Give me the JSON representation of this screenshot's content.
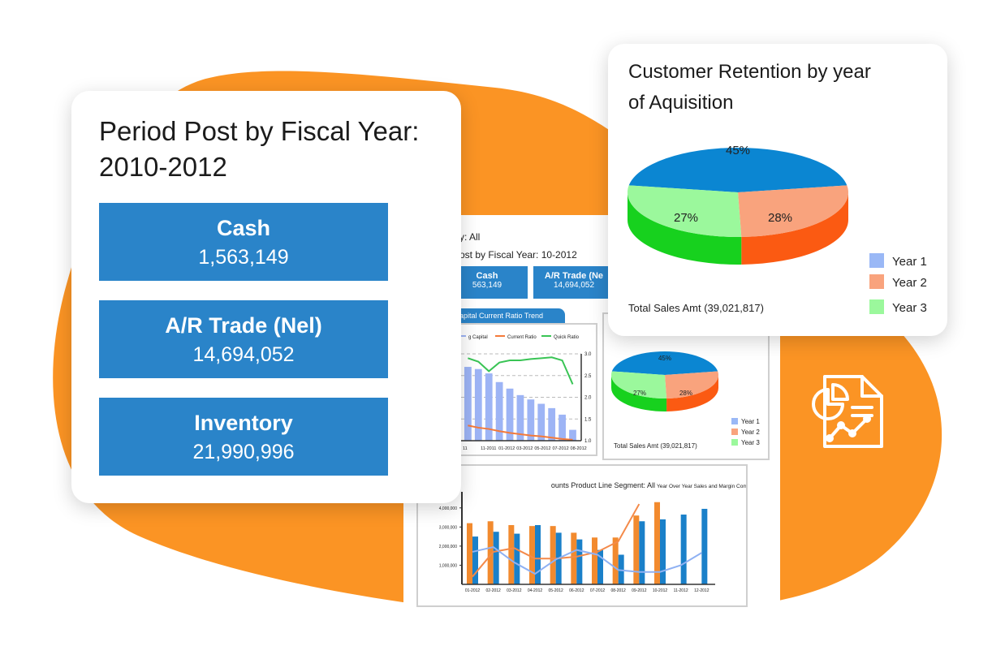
{
  "colors": {
    "orange": "#fb9424",
    "blue": "#2a84c9",
    "bar_blue": "#9db4f5",
    "green": "#39c455",
    "orange_line": "#f47a3a",
    "icon_white": "#ffffff"
  },
  "icons": {
    "report": "report-icon"
  },
  "period_card": {
    "title": "Period Post by Fiscal Year: 2010-2012",
    "kpis": [
      {
        "label": "Cash",
        "value": "1,563,149"
      },
      {
        "label": "A/R Trade (Nel)",
        "value": "14,694,052"
      },
      {
        "label": "Inventory",
        "value": "21,990,996"
      }
    ]
  },
  "dashboard": {
    "filter": "y: All",
    "subtitle": "ost by Fiscal Year: 10-2012",
    "kpis": [
      {
        "label": "Cash",
        "value": "563,149"
      },
      {
        "label": "A/R Trade (Ne",
        "value": "14,694,052"
      }
    ],
    "trend_tab": "apital Current Ratio Trend",
    "segment_title": "ounts Product Line Segment: All",
    "yoy_title": "Year Over Year Sales and Margin Comparison"
  },
  "retention_card": {
    "title": "Customer Retention by year of Aquisition",
    "total": "Total Sales Amt (39,021,817)"
  },
  "chart_data": [
    {
      "type": "pie",
      "title": "Customer Retention by year of Aquisition",
      "labels": [
        "Year 1",
        "Year 2",
        "Year 3"
      ],
      "values": [
        45,
        27,
        28
      ],
      "data_labels": [
        "45%",
        "27%",
        "28%"
      ],
      "colors": [
        "#0b86d2",
        "#f9a37d",
        "#9bf89c"
      ],
      "side_colors": [
        "#0a5ea0",
        "#fb5a12",
        "#17d11e"
      ],
      "legend_colors": [
        "#9ab8f6",
        "#f9a37d",
        "#9bf89c"
      ],
      "legend_position": "bottom-right",
      "annotation": "Total Sales Amt (39,021,817)"
    },
    {
      "type": "pie",
      "labels": [
        "Year 1",
        "Year 2",
        "Year 3"
      ],
      "values": [
        45,
        27,
        28
      ],
      "data_labels": [
        "45%",
        "27%",
        "28%"
      ],
      "colors": [
        "#0b86d2",
        "#f9a37d",
        "#9bf89c"
      ],
      "side_colors": [
        "#0a5ea0",
        "#fb5a12",
        "#17d11e"
      ],
      "legend_colors": [
        "#9ab8f6",
        "#f9a37d",
        "#9bf89c"
      ],
      "legend_position": "bottom-right",
      "annotation": "Total Sales Amt (39,021,817)"
    },
    {
      "type": "bar",
      "series_legend": [
        "g Capital",
        "Current Ratio",
        "Quick Ratio"
      ],
      "categories": [
        "11",
        "11-2011",
        "01-2012",
        "03-2012",
        "05-2012",
        "07-2012",
        "08-2012"
      ],
      "bars": [
        2.7,
        2.65,
        2.55,
        2.35,
        2.2,
        2.05,
        1.95,
        1.85,
        1.75,
        1.6,
        1.25
      ],
      "current_ratio": [
        1.35,
        1.3,
        1.27,
        1.22,
        1.18,
        1.15,
        1.12,
        1.1,
        1.07,
        1.04,
        1.02
      ],
      "quick_ratio": [
        2.9,
        2.82,
        2.6,
        2.8,
        2.85,
        2.85,
        2.88,
        2.9,
        2.92,
        2.85,
        2.3
      ],
      "right_ticks": [
        "1.0",
        "1.5",
        "2.0",
        "2.5",
        "3.0"
      ],
      "ylim": [
        1.0,
        3.0
      ]
    },
    {
      "type": "bar",
      "title": "Year Over Year Sales and Margin Comparison",
      "categories": [
        "01-2012",
        "02-2012",
        "03-2012",
        "04-2012",
        "05-2012",
        "06-2012",
        "07-2012",
        "08-2012",
        "09-2012",
        "10-2012",
        "11-2012",
        "12-2012"
      ],
      "y_ticks": [
        "1,000,000",
        "2,000,000",
        "3,000,000",
        "4,000,000"
      ],
      "ylim": [
        0,
        4500000
      ],
      "series": [
        {
          "values": [
            3200000,
            3300000,
            3100000,
            3050000,
            3050000,
            2700000,
            2450000,
            2450000,
            3600000,
            4300000,
            null,
            null
          ]
        },
        {
          "values": [
            2500000,
            2750000,
            2650000,
            3100000,
            2700000,
            2350000,
            1800000,
            1550000,
            3300000,
            3400000,
            3650000,
            3950000
          ]
        }
      ],
      "line_orange": [
        400000,
        1700000,
        1900000,
        1350000,
        1350000,
        1450000,
        1700000,
        2250000,
        4200000,
        null,
        null,
        null
      ],
      "line_blue": [
        1700000,
        1950000,
        1150000,
        550000,
        1300000,
        1800000,
        1550000,
        750000,
        650000,
        650000,
        1000000,
        1650000
      ]
    }
  ]
}
